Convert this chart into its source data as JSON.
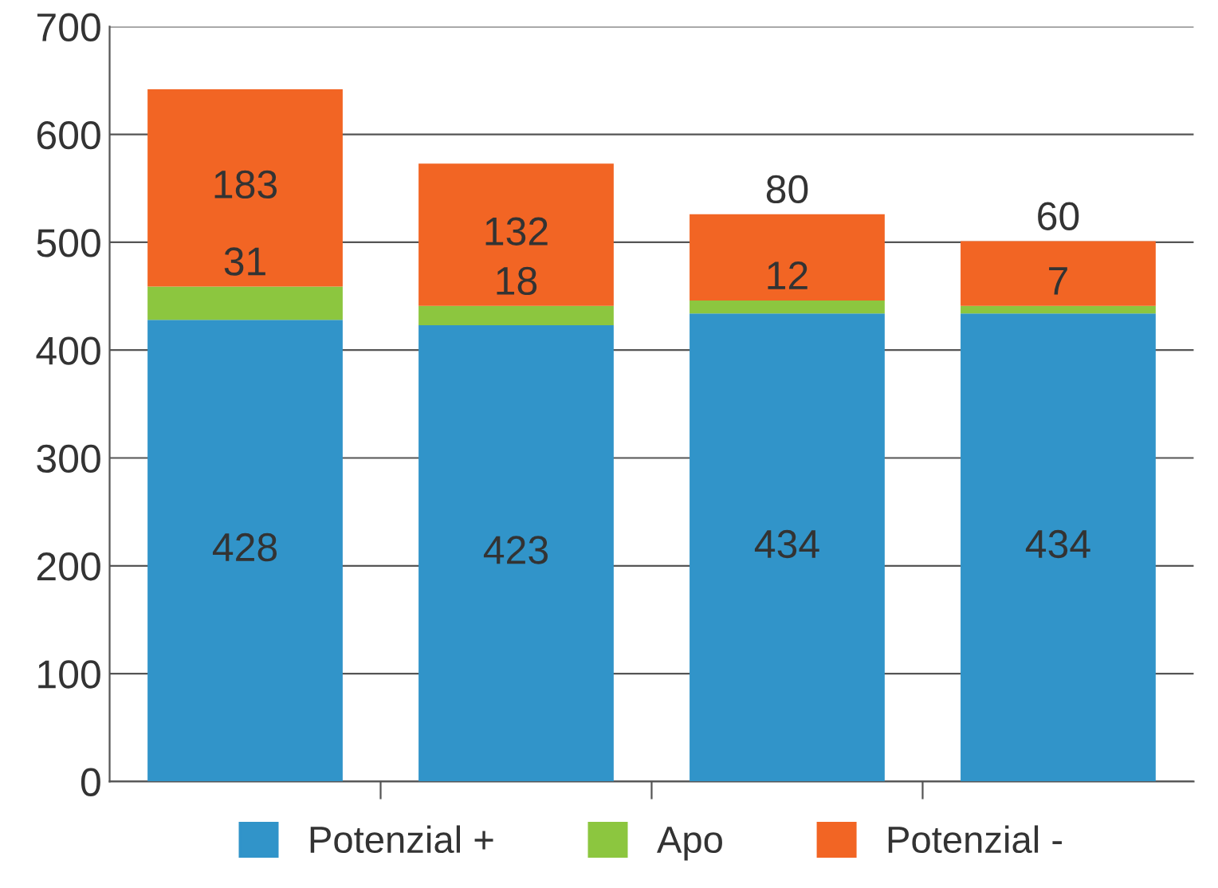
{
  "chart_data": {
    "type": "bar",
    "stacked": true,
    "categories": [
      null,
      null,
      null,
      null
    ],
    "series": [
      {
        "name": "Potenzial +",
        "color": "#3194c9",
        "values": [
          428,
          423,
          434,
          434
        ]
      },
      {
        "name": "Apo",
        "color": "#8cc63f",
        "values": [
          31,
          18,
          12,
          7
        ]
      },
      {
        "name": "Potenzial -",
        "color": "#f26524",
        "values": [
          183,
          132,
          80,
          60
        ]
      }
    ],
    "ylim": [
      0,
      700
    ],
    "yticks": [
      0,
      100,
      200,
      300,
      400,
      500,
      600,
      700
    ],
    "grid": "y",
    "legend": "bottom",
    "data_labels": true
  }
}
